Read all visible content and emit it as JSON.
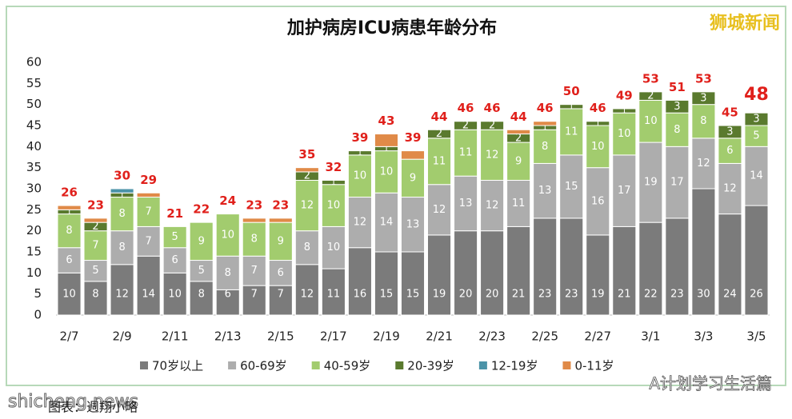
{
  "chart_data": {
    "type": "stacked-bar",
    "title": "加护病房ICU病患年龄分布",
    "categories": [
      "2/7",
      null,
      "2/9",
      null,
      "2/11",
      null,
      "2/13",
      null,
      "2/15",
      null,
      "2/17",
      null,
      "2/19",
      null,
      "2/21",
      null,
      "2/23",
      null,
      "2/25",
      null,
      "2/27",
      null,
      "3/1",
      null,
      "3/3",
      null,
      "3/5"
    ],
    "series": [
      {
        "name": "70岁以上",
        "color": "#7b7b7b",
        "values": [
          10,
          8,
          12,
          14,
          10,
          8,
          6,
          7,
          7,
          12,
          11,
          16,
          15,
          15,
          19,
          20,
          20,
          21,
          23,
          23,
          19,
          21,
          22,
          23,
          30,
          24,
          26
        ]
      },
      {
        "name": "60-69岁",
        "color": "#adadad",
        "values": [
          6,
          5,
          8,
          7,
          6,
          5,
          8,
          7,
          6,
          8,
          10,
          12,
          14,
          13,
          12,
          13,
          12,
          11,
          13,
          15,
          16,
          17,
          19,
          17,
          12,
          12,
          14
        ]
      },
      {
        "name": "40-59岁",
        "color": "#a2cc6e",
        "values": [
          8,
          7,
          8,
          7,
          5,
          9,
          10,
          8,
          9,
          12,
          10,
          10,
          10,
          9,
          11,
          11,
          12,
          9,
          8,
          11,
          10,
          10,
          10,
          8,
          8,
          6,
          5
        ]
      },
      {
        "name": "20-39岁",
        "color": "#5a7a2e",
        "values": [
          1,
          2,
          1,
          0,
          0,
          0,
          0,
          0,
          0,
          2,
          1,
          1,
          1,
          0,
          2,
          2,
          2,
          2,
          1,
          1,
          1,
          1,
          2,
          3,
          3,
          3,
          3
        ]
      },
      {
        "name": "12-19岁",
        "color": "#4b93a8",
        "values": [
          0,
          0,
          1,
          0,
          0,
          0,
          0,
          0,
          0,
          0,
          0,
          0,
          0,
          0,
          0,
          0,
          0,
          0,
          0,
          0,
          0,
          0,
          0,
          0,
          0,
          0,
          0
        ]
      },
      {
        "name": "0-11岁",
        "color": "#e08a48",
        "values": [
          1,
          1,
          0,
          1,
          0,
          0,
          0,
          1,
          1,
          1,
          0,
          0,
          3,
          2,
          0,
          0,
          0,
          1,
          1,
          0,
          0,
          0,
          0,
          0,
          0,
          0,
          0
        ]
      }
    ],
    "totals": [
      26,
      23,
      30,
      29,
      21,
      22,
      24,
      23,
      23,
      35,
      32,
      39,
      43,
      39,
      44,
      46,
      46,
      44,
      46,
      50,
      46,
      49,
      53,
      51,
      53,
      45,
      48
    ],
    "ylim": [
      0,
      60
    ],
    "yticks": [
      0,
      5,
      10,
      15,
      20,
      25,
      30,
      35,
      40,
      45,
      50,
      55,
      60
    ],
    "grid": false,
    "legend": "bottom"
  },
  "page": {
    "brand": "狮城新闻",
    "source": "图表：週翔小略",
    "watermark": "shicheng.news",
    "wechat": "A计划学习生活篇"
  }
}
